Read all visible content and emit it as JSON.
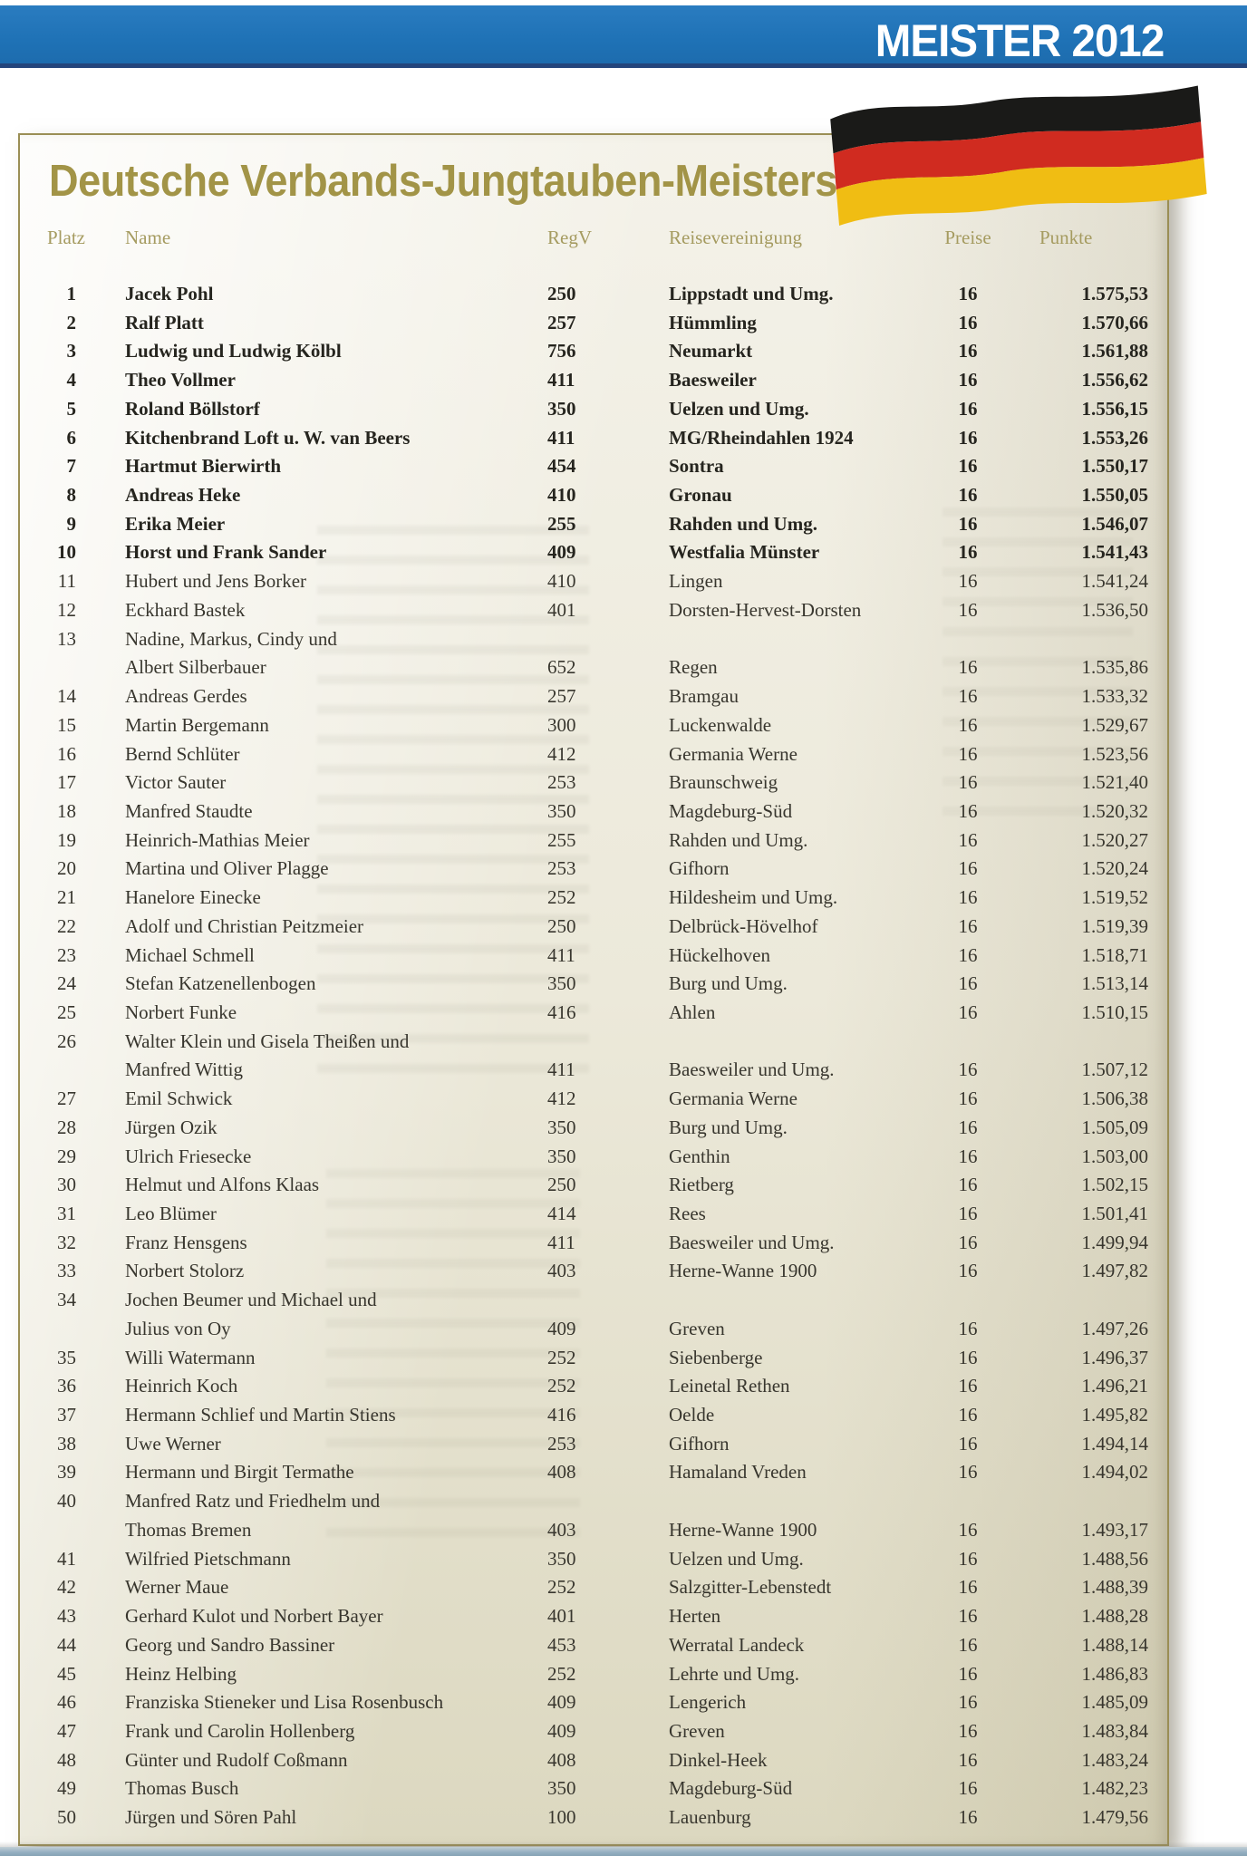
{
  "banner": {
    "title": "MEISTER 2012"
  },
  "sheet": {
    "title": "Deutsche Verbands-Jungtauben-Meisterschaft 2012"
  },
  "colors": {
    "banner_blue": "#1f72b6",
    "banner_underline_navy": "#24457c",
    "title_gold": "#a29447",
    "header_gold": "#a59b60",
    "body_text": "#38362e",
    "sheet_cream": "#ece9da",
    "flag_black": "#1a1a18",
    "flag_red": "#d02b20",
    "flag_gold": "#f0bd13"
  },
  "icons": {
    "flag": "german-flag-waving"
  },
  "table": {
    "headers": {
      "platz": "Platz",
      "name": "Name",
      "regv": "RegV",
      "rv": "Reisevereinigung",
      "preise": "Preise",
      "punkte": "Punkte"
    },
    "rows": [
      {
        "platz": "1",
        "name": "Jacek Pohl",
        "regv": "250",
        "rv": "Lippstadt und Umg.",
        "preise": "16",
        "punkte": "1.575,53",
        "bold": true
      },
      {
        "platz": "2",
        "name": "Ralf Platt",
        "regv": "257",
        "rv": "Hümmling",
        "preise": "16",
        "punkte": "1.570,66",
        "bold": true
      },
      {
        "platz": "3",
        "name": "Ludwig und Ludwig Kölbl",
        "regv": "756",
        "rv": "Neumarkt",
        "preise": "16",
        "punkte": "1.561,88",
        "bold": true
      },
      {
        "platz": "4",
        "name": "Theo Vollmer",
        "regv": "411",
        "rv": "Baesweiler",
        "preise": "16",
        "punkte": "1.556,62",
        "bold": true
      },
      {
        "platz": "5",
        "name": "Roland Böllstorf",
        "regv": "350",
        "rv": "Uelzen und Umg.",
        "preise": "16",
        "punkte": "1.556,15",
        "bold": true
      },
      {
        "platz": "6",
        "name": "Kitchenbrand Loft u. W. van Beers",
        "regv": "411",
        "rv": "MG/Rheindahlen 1924",
        "preise": "16",
        "punkte": "1.553,26",
        "bold": true
      },
      {
        "platz": "7",
        "name": "Hartmut Bierwirth",
        "regv": "454",
        "rv": "Sontra",
        "preise": "16",
        "punkte": "1.550,17",
        "bold": true
      },
      {
        "platz": "8",
        "name": "Andreas Heke",
        "regv": "410",
        "rv": "Gronau",
        "preise": "16",
        "punkte": "1.550,05",
        "bold": true
      },
      {
        "platz": "9",
        "name": "Erika Meier",
        "regv": "255",
        "rv": "Rahden und Umg.",
        "preise": "16",
        "punkte": "1.546,07",
        "bold": true
      },
      {
        "platz": "10",
        "name": "Horst und Frank Sander",
        "regv": "409",
        "rv": "Westfalia Münster",
        "preise": "16",
        "punkte": "1.541,43",
        "bold": true
      },
      {
        "platz": "11",
        "name": "Hubert und Jens Borker",
        "regv": "410",
        "rv": "Lingen",
        "preise": "16",
        "punkte": "1.541,24",
        "bold": false
      },
      {
        "platz": "12",
        "name": "Eckhard Bastek",
        "regv": "401",
        "rv": "Dorsten-Hervest-Dorsten",
        "preise": "16",
        "punkte": "1.536,50",
        "bold": false
      },
      {
        "platz": "13",
        "name": "Nadine, Markus, Cindy und",
        "name2": "Albert Silberbauer",
        "regv": "652",
        "rv": "Regen",
        "preise": "16",
        "punkte": "1.535,86",
        "bold": false
      },
      {
        "platz": "14",
        "name": "Andreas Gerdes",
        "regv": "257",
        "rv": "Bramgau",
        "preise": "16",
        "punkte": "1.533,32",
        "bold": false
      },
      {
        "platz": "15",
        "name": "Martin Bergemann",
        "regv": "300",
        "rv": "Luckenwalde",
        "preise": "16",
        "punkte": "1.529,67",
        "bold": false
      },
      {
        "platz": "16",
        "name": "Bernd Schlüter",
        "regv": "412",
        "rv": "Germania Werne",
        "preise": "16",
        "punkte": "1.523,56",
        "bold": false
      },
      {
        "platz": "17",
        "name": "Victor Sauter",
        "regv": "253",
        "rv": "Braunschweig",
        "preise": "16",
        "punkte": "1.521,40",
        "bold": false
      },
      {
        "platz": "18",
        "name": "Manfred Staudte",
        "regv": "350",
        "rv": "Magdeburg-Süd",
        "preise": "16",
        "punkte": "1.520,32",
        "bold": false
      },
      {
        "platz": "19",
        "name": "Heinrich-Mathias Meier",
        "regv": "255",
        "rv": "Rahden und Umg.",
        "preise": "16",
        "punkte": "1.520,27",
        "bold": false
      },
      {
        "platz": "20",
        "name": "Martina und Oliver Plagge",
        "regv": "253",
        "rv": "Gifhorn",
        "preise": "16",
        "punkte": "1.520,24",
        "bold": false
      },
      {
        "platz": "21",
        "name": "Hanelore Einecke",
        "regv": "252",
        "rv": "Hildesheim und Umg.",
        "preise": "16",
        "punkte": "1.519,52",
        "bold": false
      },
      {
        "platz": "22",
        "name": "Adolf und Christian Peitzmeier",
        "regv": "250",
        "rv": "Delbrück-Hövelhof",
        "preise": "16",
        "punkte": "1.519,39",
        "bold": false
      },
      {
        "platz": "23",
        "name": "Michael Schmell",
        "regv": "411",
        "rv": "Hückelhoven",
        "preise": "16",
        "punkte": "1.518,71",
        "bold": false
      },
      {
        "platz": "24",
        "name": "Stefan Katzenellenbogen",
        "regv": "350",
        "rv": "Burg und Umg.",
        "preise": "16",
        "punkte": "1.513,14",
        "bold": false
      },
      {
        "platz": "25",
        "name": "Norbert Funke",
        "regv": "416",
        "rv": "Ahlen",
        "preise": "16",
        "punkte": "1.510,15",
        "bold": false
      },
      {
        "platz": "26",
        "name": "Walter Klein und Gisela Theißen und",
        "name2": "Manfred Wittig",
        "regv": "411",
        "rv": "Baesweiler und Umg.",
        "preise": "16",
        "punkte": "1.507,12",
        "bold": false
      },
      {
        "platz": "27",
        "name": "Emil Schwick",
        "regv": "412",
        "rv": "Germania Werne",
        "preise": "16",
        "punkte": "1.506,38",
        "bold": false
      },
      {
        "platz": "28",
        "name": "Jürgen Ozik",
        "regv": "350",
        "rv": "Burg und Umg.",
        "preise": "16",
        "punkte": "1.505,09",
        "bold": false
      },
      {
        "platz": "29",
        "name": "Ulrich Friesecke",
        "regv": "350",
        "rv": "Genthin",
        "preise": "16",
        "punkte": "1.503,00",
        "bold": false
      },
      {
        "platz": "30",
        "name": "Helmut und Alfons Klaas",
        "regv": "250",
        "rv": "Rietberg",
        "preise": "16",
        "punkte": "1.502,15",
        "bold": false
      },
      {
        "platz": "31",
        "name": "Leo Blümer",
        "regv": "414",
        "rv": "Rees",
        "preise": "16",
        "punkte": "1.501,41",
        "bold": false
      },
      {
        "platz": "32",
        "name": "Franz Hensgens",
        "regv": "411",
        "rv": "Baesweiler und Umg.",
        "preise": "16",
        "punkte": "1.499,94",
        "bold": false
      },
      {
        "platz": "33",
        "name": "Norbert Stolorz",
        "regv": "403",
        "rv": "Herne-Wanne 1900",
        "preise": "16",
        "punkte": "1.497,82",
        "bold": false
      },
      {
        "platz": "34",
        "name": "Jochen Beumer und Michael und",
        "name2": "Julius von Oy",
        "regv": "409",
        "rv": "Greven",
        "preise": "16",
        "punkte": "1.497,26",
        "bold": false
      },
      {
        "platz": "35",
        "name": "Willi Watermann",
        "regv": "252",
        "rv": "Siebenberge",
        "preise": "16",
        "punkte": "1.496,37",
        "bold": false
      },
      {
        "platz": "36",
        "name": "Heinrich Koch",
        "regv": "252",
        "rv": "Leinetal Rethen",
        "preise": "16",
        "punkte": "1.496,21",
        "bold": false
      },
      {
        "platz": "37",
        "name": "Hermann Schlief und Martin Stiens",
        "regv": "416",
        "rv": "Oelde",
        "preise": "16",
        "punkte": "1.495,82",
        "bold": false
      },
      {
        "platz": "38",
        "name": "Uwe Werner",
        "regv": "253",
        "rv": "Gifhorn",
        "preise": "16",
        "punkte": "1.494,14",
        "bold": false
      },
      {
        "platz": "39",
        "name": "Hermann und Birgit Termathe",
        "regv": "408",
        "rv": "Hamaland Vreden",
        "preise": "16",
        "punkte": "1.494,02",
        "bold": false
      },
      {
        "platz": "40",
        "name": "Manfred Ratz und Friedhelm und",
        "name2": "Thomas Bremen",
        "regv": "403",
        "rv": "Herne-Wanne 1900",
        "preise": "16",
        "punkte": "1.493,17",
        "bold": false
      },
      {
        "platz": "41",
        "name": "Wilfried Pietschmann",
        "regv": "350",
        "rv": "Uelzen und Umg.",
        "preise": "16",
        "punkte": "1.488,56",
        "bold": false
      },
      {
        "platz": "42",
        "name": "Werner Maue",
        "regv": "252",
        "rv": "Salzgitter-Lebenstedt",
        "preise": "16",
        "punkte": "1.488,39",
        "bold": false
      },
      {
        "platz": "43",
        "name": "Gerhard Kulot und Norbert Bayer",
        "regv": "401",
        "rv": "Herten",
        "preise": "16",
        "punkte": "1.488,28",
        "bold": false
      },
      {
        "platz": "44",
        "name": "Georg und Sandro Bassiner",
        "regv": "453",
        "rv": "Werratal Landeck",
        "preise": "16",
        "punkte": "1.488,14",
        "bold": false
      },
      {
        "platz": "45",
        "name": "Heinz Helbing",
        "regv": "252",
        "rv": "Lehrte und Umg.",
        "preise": "16",
        "punkte": "1.486,83",
        "bold": false
      },
      {
        "platz": "46",
        "name": "Franziska Stieneker und Lisa Rosenbusch",
        "regv": "409",
        "rv": "Lengerich",
        "preise": "16",
        "punkte": "1.485,09",
        "bold": false
      },
      {
        "platz": "47",
        "name": "Frank und Carolin Hollenberg",
        "regv": "409",
        "rv": "Greven",
        "preise": "16",
        "punkte": "1.483,84",
        "bold": false
      },
      {
        "platz": "48",
        "name": "Günter und Rudolf Coßmann",
        "regv": "408",
        "rv": "Dinkel-Heek",
        "preise": "16",
        "punkte": "1.483,24",
        "bold": false
      },
      {
        "platz": "49",
        "name": "Thomas Busch",
        "regv": "350",
        "rv": "Magdeburg-Süd",
        "preise": "16",
        "punkte": "1.482,23",
        "bold": false
      },
      {
        "platz": "50",
        "name": "Jürgen und Sören Pahl",
        "regv": "100",
        "rv": "Lauenburg",
        "preise": "16",
        "punkte": "1.479,56",
        "bold": false
      }
    ]
  }
}
